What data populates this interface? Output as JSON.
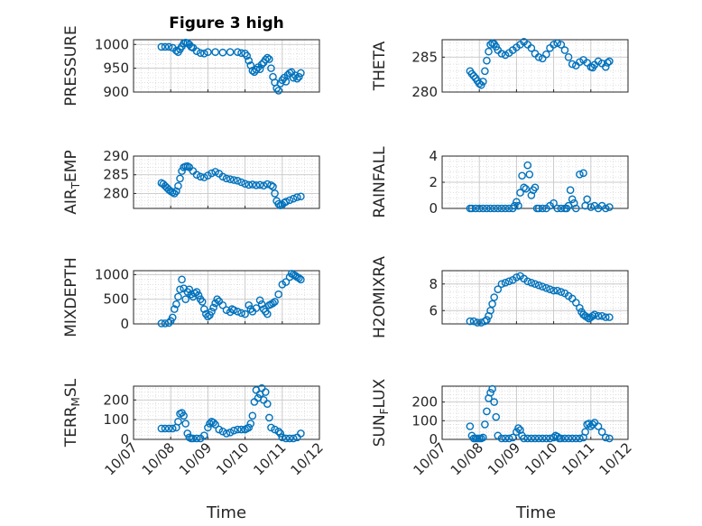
{
  "figure": {
    "title": "Figure 3 high",
    "xlabel": "Time",
    "x_tick_labels": [
      "10/07",
      "10/08",
      "10/09",
      "10/10",
      "10/11",
      "10/12"
    ],
    "marker_color": "#0072BD"
  },
  "chart_data": [
    {
      "type": "scatter",
      "ylabel": "PRESSURE",
      "ylim": [
        900,
        1010
      ],
      "yticks": [
        900,
        950,
        1000
      ],
      "grid": true,
      "x": [
        0.75,
        0.85,
        0.95,
        1.05,
        1.15,
        1.2,
        1.25,
        1.3,
        1.35,
        1.4,
        1.45,
        1.5,
        1.55,
        1.6,
        1.7,
        1.8,
        1.9,
        2.0,
        2.2,
        2.4,
        2.6,
        2.8,
        2.9,
        3.0,
        3.05,
        3.1,
        3.15,
        3.2,
        3.25,
        3.3,
        3.35,
        3.4,
        3.45,
        3.5,
        3.55,
        3.6,
        3.65,
        3.7,
        3.75,
        3.8,
        3.85,
        3.9,
        3.95,
        4.0,
        4.05,
        4.1,
        4.15,
        4.2,
        4.25,
        4.3,
        4.35,
        4.4,
        4.45,
        4.5
      ],
      "y": [
        995,
        995,
        995,
        993,
        987,
        984,
        990,
        996,
        1002,
        1004,
        1003,
        1000,
        995,
        993,
        986,
        982,
        981,
        984,
        984,
        983,
        984,
        984,
        982,
        981,
        976,
        966,
        956,
        945,
        942,
        947,
        952,
        948,
        958,
        962,
        968,
        972,
        969,
        950,
        932,
        920,
        908,
        903,
        918,
        925,
        930,
        922,
        936,
        940,
        942,
        930,
        935,
        928,
        932,
        940
      ]
    },
    {
      "type": "scatter",
      "ylabel": "THETA",
      "ylim": [
        280,
        287.5
      ],
      "yticks": [
        280,
        285
      ],
      "grid": true,
      "x": [
        0.75,
        0.8,
        0.85,
        0.9,
        0.95,
        1.0,
        1.05,
        1.1,
        1.15,
        1.2,
        1.25,
        1.3,
        1.35,
        1.4,
        1.45,
        1.5,
        1.6,
        1.7,
        1.8,
        1.9,
        2.0,
        2.1,
        2.2,
        2.3,
        2.4,
        2.5,
        2.6,
        2.7,
        2.8,
        2.9,
        3.0,
        3.1,
        3.2,
        3.3,
        3.4,
        3.5,
        3.6,
        3.7,
        3.8,
        3.9,
        4.0,
        4.05,
        4.1,
        4.2,
        4.3,
        4.4,
        4.45,
        4.5
      ],
      "y": [
        283,
        282.6,
        282.3,
        282,
        281.6,
        281.2,
        281,
        281.5,
        283,
        284.5,
        285.8,
        286.8,
        287,
        286.9,
        286.5,
        286,
        285.5,
        285.3,
        285.6,
        286,
        286.4,
        286.8,
        287.2,
        286.8,
        286.3,
        285.5,
        285,
        284.8,
        285.4,
        286.3,
        286.8,
        287,
        286.8,
        286,
        285,
        284,
        283.8,
        284.3,
        284.6,
        284.2,
        283.6,
        283.5,
        283.9,
        284.4,
        284.1,
        283.6,
        284.2,
        284.4
      ]
    },
    {
      "type": "scatter",
      "ylabel": "AIR_TEMP",
      "ylim": [
        276,
        290
      ],
      "yticks": [
        280,
        285,
        290
      ],
      "grid": true,
      "x": [
        0.75,
        0.8,
        0.85,
        0.9,
        0.95,
        1.0,
        1.05,
        1.1,
        1.15,
        1.2,
        1.25,
        1.3,
        1.35,
        1.4,
        1.45,
        1.5,
        1.6,
        1.7,
        1.8,
        1.9,
        2.0,
        2.1,
        2.2,
        2.3,
        2.4,
        2.5,
        2.6,
        2.7,
        2.8,
        2.9,
        3.0,
        3.1,
        3.2,
        3.3,
        3.4,
        3.5,
        3.6,
        3.7,
        3.75,
        3.8,
        3.85,
        3.9,
        3.95,
        4.0,
        4.05,
        4.1,
        4.2,
        4.3,
        4.4,
        4.5
      ],
      "y": [
        282.8,
        282.5,
        282,
        281.5,
        281,
        280.6,
        280.3,
        280,
        280.6,
        282,
        284,
        286,
        287,
        287.2,
        287.3,
        287,
        286,
        285,
        284.5,
        284.3,
        284.8,
        285.4,
        285.8,
        285.3,
        284.5,
        284,
        283.8,
        283.6,
        283.4,
        283,
        282.6,
        282.3,
        282.4,
        282.2,
        282.3,
        282.1,
        282.5,
        282.2,
        281.8,
        280,
        278,
        277.2,
        276.8,
        277,
        277.5,
        277.8,
        278.2,
        278.6,
        279,
        279.2
      ]
    },
    {
      "type": "scatter",
      "ylabel": "RAINFALL",
      "ylim": [
        0,
        4
      ],
      "yticks": [
        0,
        2,
        4
      ],
      "grid": true,
      "x": [
        0.75,
        0.8,
        0.9,
        1.0,
        1.1,
        1.2,
        1.3,
        1.4,
        1.5,
        1.6,
        1.7,
        1.8,
        1.9,
        1.95,
        2.0,
        2.05,
        2.1,
        2.15,
        2.2,
        2.25,
        2.3,
        2.35,
        2.4,
        2.45,
        2.5,
        2.55,
        2.6,
        2.7,
        2.8,
        2.9,
        3.0,
        3.1,
        3.2,
        3.3,
        3.35,
        3.4,
        3.45,
        3.5,
        3.55,
        3.6,
        3.7,
        3.8,
        3.85,
        3.9,
        4.0,
        4.1,
        4.2,
        4.3,
        4.4,
        4.5
      ],
      "y": [
        0,
        0,
        0,
        0,
        0,
        0,
        0,
        0,
        0,
        0,
        0,
        0,
        0,
        0.2,
        0.5,
        0.2,
        1.2,
        2.5,
        1.6,
        1.5,
        3.3,
        2.6,
        1,
        1.4,
        1.6,
        0,
        0,
        0,
        0,
        0.2,
        0.4,
        0,
        0,
        0,
        0,
        0.2,
        1.4,
        0.7,
        0.4,
        0,
        2.6,
        2.7,
        0.2,
        0.7,
        0.1,
        0.2,
        0,
        0.2,
        0,
        0.1
      ]
    },
    {
      "type": "scatter",
      "ylabel": "MIXDEPTH",
      "ylim": [
        0,
        1080
      ],
      "yticks": [
        0,
        500,
        1000
      ],
      "grid": true,
      "x": [
        0.75,
        0.85,
        0.95,
        1.0,
        1.05,
        1.1,
        1.15,
        1.2,
        1.25,
        1.3,
        1.35,
        1.4,
        1.45,
        1.5,
        1.55,
        1.6,
        1.65,
        1.7,
        1.75,
        1.8,
        1.85,
        1.9,
        1.95,
        2.0,
        2.05,
        2.1,
        2.15,
        2.2,
        2.25,
        2.3,
        2.4,
        2.5,
        2.6,
        2.65,
        2.7,
        2.8,
        2.9,
        3.0,
        3.1,
        3.15,
        3.2,
        3.3,
        3.4,
        3.45,
        3.5,
        3.55,
        3.6,
        3.65,
        3.7,
        3.75,
        3.8,
        3.9,
        4.0,
        4.1,
        4.2,
        4.25,
        4.3,
        4.35,
        4.4,
        4.45,
        4.5
      ],
      "y": [
        10,
        10,
        20,
        60,
        130,
        300,
        400,
        550,
        700,
        900,
        720,
        500,
        650,
        700,
        600,
        550,
        620,
        650,
        580,
        500,
        450,
        300,
        200,
        150,
        180,
        250,
        330,
        420,
        500,
        460,
        380,
        280,
        240,
        300,
        280,
        250,
        220,
        200,
        380,
        300,
        250,
        320,
        480,
        400,
        300,
        250,
        200,
        380,
        400,
        420,
        450,
        600,
        800,
        850,
        950,
        1020,
        1000,
        980,
        950,
        930,
        900
      ]
    },
    {
      "type": "scatter",
      "ylabel": "H2OMIXRA",
      "ylim": [
        5,
        9
      ],
      "yticks": [
        6,
        8
      ],
      "grid": true,
      "x": [
        0.75,
        0.85,
        0.95,
        1.05,
        1.15,
        1.2,
        1.25,
        1.3,
        1.35,
        1.4,
        1.5,
        1.6,
        1.7,
        1.8,
        1.9,
        2.0,
        2.1,
        2.2,
        2.3,
        2.4,
        2.5,
        2.6,
        2.7,
        2.8,
        2.9,
        3.0,
        3.1,
        3.2,
        3.3,
        3.4,
        3.5,
        3.6,
        3.7,
        3.75,
        3.8,
        3.85,
        3.9,
        3.95,
        4.0,
        4.05,
        4.1,
        4.2,
        4.3,
        4.4,
        4.5
      ],
      "y": [
        5.2,
        5.2,
        5.1,
        5.1,
        5.2,
        5.3,
        5.6,
        6,
        6.5,
        7,
        7.6,
        8,
        8.1,
        8.2,
        8.3,
        8.5,
        8.6,
        8.4,
        8.2,
        8.1,
        8,
        7.9,
        7.8,
        7.7,
        7.6,
        7.5,
        7.5,
        7.4,
        7.3,
        7.1,
        6.9,
        6.6,
        6.2,
        5.9,
        5.7,
        5.6,
        5.5,
        5.4,
        5.5,
        5.6,
        5.7,
        5.6,
        5.6,
        5.5,
        5.5
      ]
    },
    {
      "type": "scatter",
      "ylabel": "TERR_MSL",
      "ylim": [
        0,
        270
      ],
      "yticks": [
        0,
        100,
        200
      ],
      "grid": true,
      "x": [
        0.75,
        0.85,
        0.95,
        1.05,
        1.15,
        1.2,
        1.25,
        1.3,
        1.35,
        1.4,
        1.45,
        1.5,
        1.55,
        1.6,
        1.7,
        1.8,
        1.9,
        2.0,
        2.05,
        2.1,
        2.15,
        2.2,
        2.3,
        2.4,
        2.5,
        2.6,
        2.7,
        2.8,
        2.9,
        3.0,
        3.05,
        3.1,
        3.15,
        3.2,
        3.25,
        3.3,
        3.35,
        3.4,
        3.45,
        3.5,
        3.55,
        3.6,
        3.65,
        3.7,
        3.8,
        3.9,
        3.95,
        4.0,
        4.1,
        4.2,
        4.3,
        4.4,
        4.5
      ],
      "y": [
        55,
        55,
        55,
        55,
        60,
        90,
        130,
        135,
        120,
        80,
        30,
        10,
        5,
        5,
        5,
        5,
        20,
        60,
        80,
        90,
        85,
        75,
        50,
        40,
        30,
        35,
        45,
        50,
        50,
        50,
        55,
        60,
        80,
        120,
        190,
        250,
        210,
        230,
        260,
        200,
        240,
        180,
        110,
        60,
        50,
        40,
        30,
        10,
        5,
        5,
        5,
        10,
        30
      ]
    },
    {
      "type": "scatter",
      "ylabel": "SUN_FLUX",
      "ylim": [
        0,
        285
      ],
      "yticks": [
        0,
        100,
        200
      ],
      "grid": true,
      "x": [
        0.75,
        0.8,
        0.85,
        0.9,
        0.95,
        1.0,
        1.05,
        1.1,
        1.15,
        1.2,
        1.25,
        1.3,
        1.35,
        1.4,
        1.45,
        1.5,
        1.6,
        1.7,
        1.8,
        1.9,
        2.0,
        2.05,
        2.1,
        2.15,
        2.2,
        2.3,
        2.4,
        2.5,
        2.6,
        2.7,
        2.8,
        2.9,
        3.0,
        3.05,
        3.1,
        3.15,
        3.2,
        3.3,
        3.4,
        3.5,
        3.6,
        3.7,
        3.8,
        3.85,
        3.9,
        3.95,
        4.0,
        4.05,
        4.1,
        4.2,
        4.3,
        4.4,
        4.5
      ],
      "y": [
        70,
        20,
        5,
        5,
        5,
        5,
        5,
        10,
        80,
        150,
        220,
        250,
        270,
        200,
        120,
        20,
        5,
        5,
        5,
        10,
        40,
        60,
        50,
        20,
        5,
        5,
        5,
        5,
        5,
        5,
        5,
        5,
        10,
        20,
        15,
        5,
        5,
        5,
        5,
        5,
        5,
        5,
        10,
        40,
        80,
        85,
        70,
        80,
        90,
        70,
        40,
        10,
        5
      ]
    }
  ]
}
